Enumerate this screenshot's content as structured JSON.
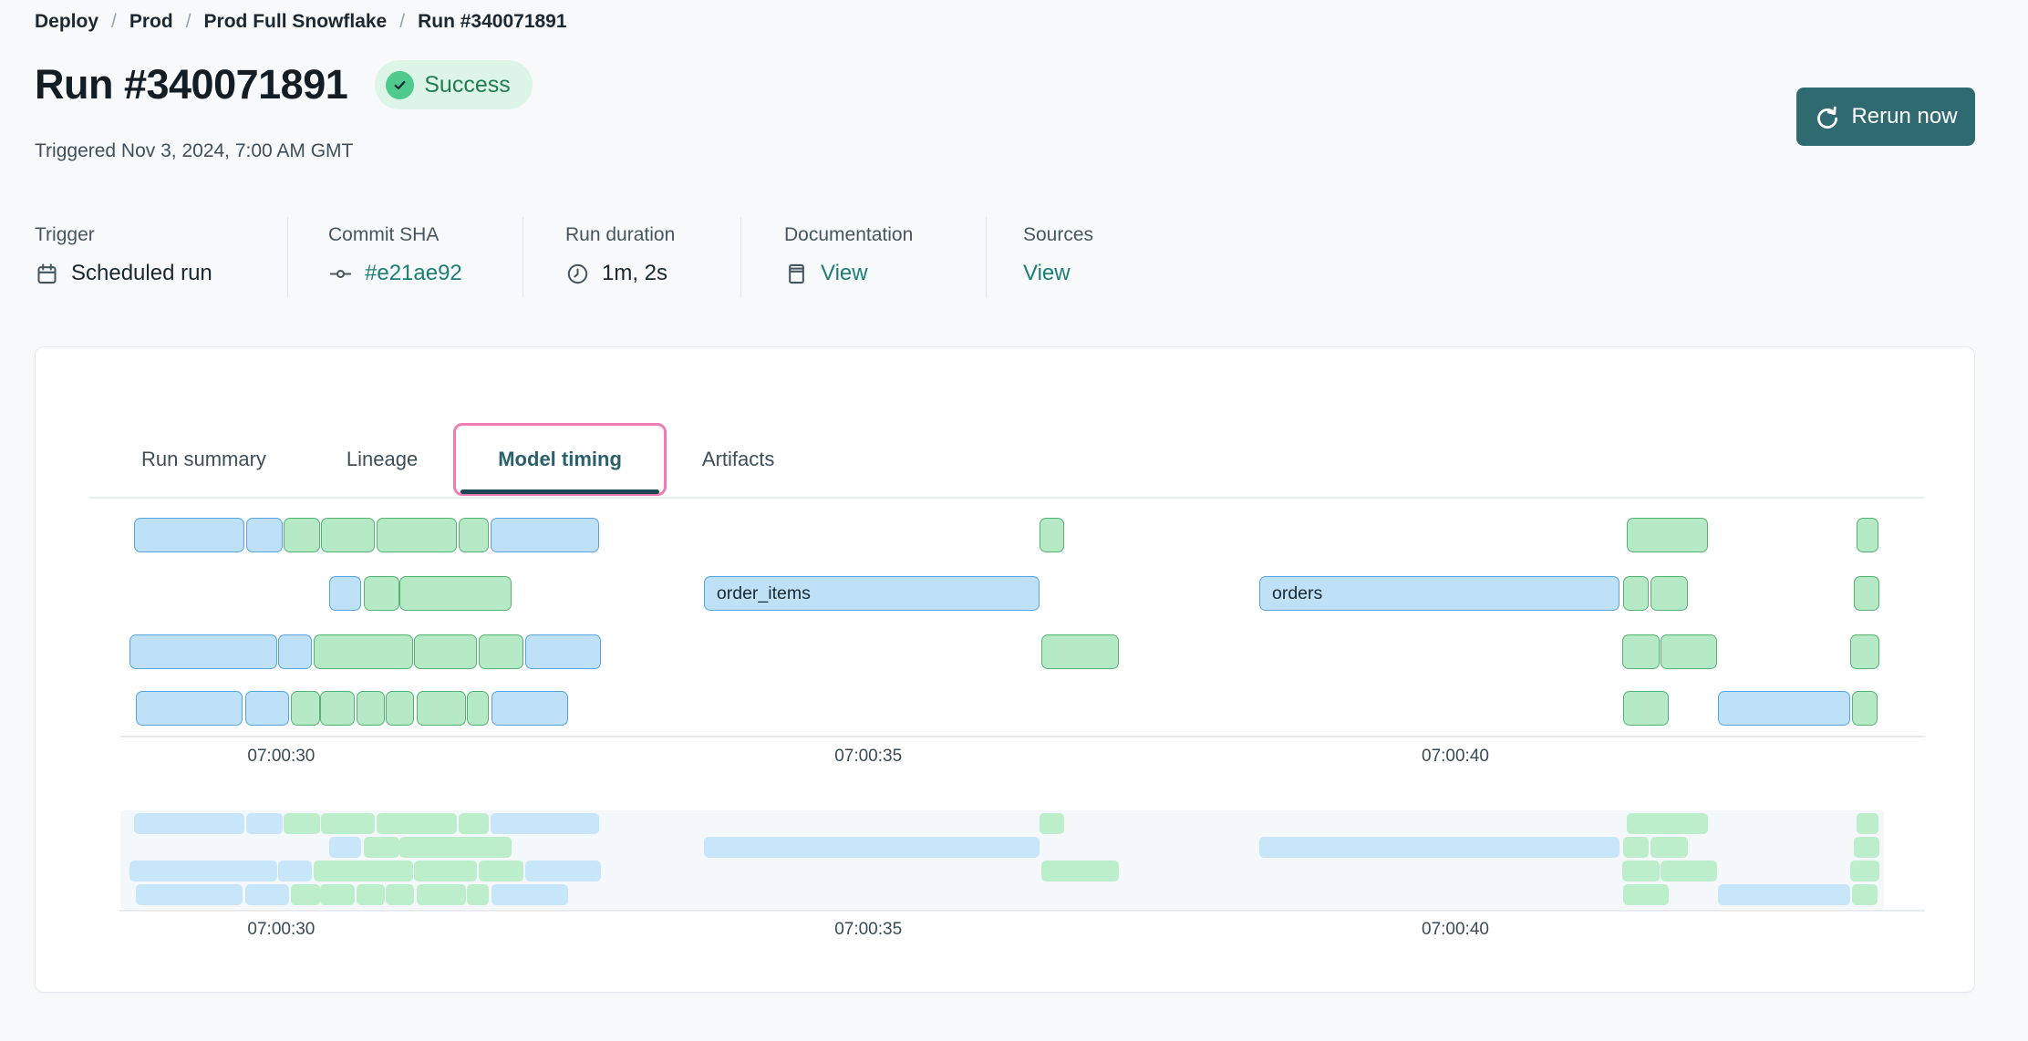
{
  "breadcrumb": {
    "separator": "/",
    "items": [
      "Deploy",
      "Prod",
      "Prod Full Snowflake",
      "Run #340071891"
    ]
  },
  "header": {
    "title": "Run #340071891",
    "status": "Success",
    "triggered": "Triggered Nov 3, 2024, 7:00 AM GMT",
    "rerun_label": "Rerun now"
  },
  "meta": [
    {
      "label": "Trigger",
      "value": "Scheduled run",
      "icon": "calendar-icon",
      "link": false
    },
    {
      "label": "Commit SHA",
      "value": "#e21ae92",
      "icon": "commit-icon",
      "link": true
    },
    {
      "label": "Run duration",
      "value": "1m, 2s",
      "icon": "clock-icon",
      "link": false
    },
    {
      "label": "Documentation",
      "value": "View",
      "icon": "docs-icon",
      "link": true
    },
    {
      "label": "Sources",
      "value": "View",
      "icon": null,
      "link": true
    }
  ],
  "tabs": [
    {
      "label": "Run summary",
      "active": false
    },
    {
      "label": "Lineage",
      "active": false
    },
    {
      "label": "Model timing",
      "active": true
    },
    {
      "label": "Artifacts",
      "active": false
    }
  ],
  "colors": {
    "page_bg": "#f7f9fb",
    "text_dark": "#1b2832",
    "link_teal": "#1b7f77",
    "button_bg": "#2f6a70",
    "badge_bg": "#ddf5e6",
    "badge_circle": "#4fc98c",
    "badge_text": "#237c52",
    "tab_pink": "#ee7eb1",
    "tab_active_text": "#2a5f6d",
    "bar_blue_fill": "#bfe1f8",
    "bar_blue_border": "#56a4e4",
    "bar_green_fill": "#b6eac6",
    "bar_green_border": "#54b274",
    "mini_blue": "#c8e6fa",
    "mini_green": "#bceecb",
    "mini_bg": "#f5f8fa"
  },
  "chart_data": {
    "type": "gantt",
    "title": "Model timing",
    "x_unit": "seconds after 07:00:00 GMT",
    "xlim": [
      28.7,
      43.65
    ],
    "grid": false,
    "has_overview_strip": true,
    "ticks": [
      {
        "t": 30,
        "label": "07:00:30"
      },
      {
        "t": 35,
        "label": "07:00:35"
      },
      {
        "t": 40,
        "label": "07:00:40"
      }
    ],
    "rows": [
      [
        {
          "s": 28.75,
          "e": 29.69,
          "c": "b"
        },
        {
          "s": 29.7,
          "e": 30.01,
          "c": "b"
        },
        {
          "s": 30.02,
          "e": 30.33,
          "c": "g"
        },
        {
          "s": 30.34,
          "e": 30.8,
          "c": "g"
        },
        {
          "s": 30.81,
          "e": 31.5,
          "c": "g"
        },
        {
          "s": 31.51,
          "e": 31.77,
          "c": "g"
        },
        {
          "s": 31.78,
          "e": 32.71,
          "c": "b"
        },
        {
          "s": 36.46,
          "e": 36.67,
          "c": "g"
        },
        {
          "s": 41.46,
          "e": 42.15,
          "c": "g"
        },
        {
          "s": 43.42,
          "e": 43.6,
          "c": "g"
        }
      ],
      [
        {
          "s": 30.41,
          "e": 30.68,
          "c": "b"
        },
        {
          "s": 30.7,
          "e": 31.01,
          "c": "g"
        },
        {
          "s": 31.01,
          "e": 31.96,
          "c": "g"
        },
        {
          "s": 33.6,
          "e": 36.46,
          "c": "b",
          "l": "order_items"
        },
        {
          "s": 38.33,
          "e": 41.4,
          "c": "b",
          "l": "orders"
        },
        {
          "s": 41.43,
          "e": 41.65,
          "c": "g"
        },
        {
          "s": 41.66,
          "e": 41.98,
          "c": "g"
        },
        {
          "s": 43.39,
          "e": 43.61,
          "c": "g"
        }
      ],
      [
        {
          "s": 28.71,
          "e": 29.97,
          "c": "b"
        },
        {
          "s": 29.97,
          "e": 30.26,
          "c": "b"
        },
        {
          "s": 30.28,
          "e": 31.12,
          "c": "g"
        },
        {
          "s": 31.13,
          "e": 31.67,
          "c": "g"
        },
        {
          "s": 31.68,
          "e": 32.06,
          "c": "g"
        },
        {
          "s": 32.08,
          "e": 32.72,
          "c": "b"
        },
        {
          "s": 36.47,
          "e": 37.13,
          "c": "g"
        },
        {
          "s": 41.42,
          "e": 41.74,
          "c": "g"
        },
        {
          "s": 41.75,
          "e": 42.23,
          "c": "g"
        },
        {
          "s": 43.36,
          "e": 43.61,
          "c": "g"
        }
      ],
      [
        {
          "s": 28.76,
          "e": 29.67,
          "c": "b"
        },
        {
          "s": 29.69,
          "e": 30.07,
          "c": "b"
        },
        {
          "s": 30.08,
          "e": 30.33,
          "c": "g"
        },
        {
          "s": 30.33,
          "e": 30.63,
          "c": "g"
        },
        {
          "s": 30.64,
          "e": 30.88,
          "c": "g"
        },
        {
          "s": 30.89,
          "e": 31.13,
          "c": "g"
        },
        {
          "s": 31.15,
          "e": 31.57,
          "c": "g"
        },
        {
          "s": 31.58,
          "e": 31.77,
          "c": "g"
        },
        {
          "s": 31.79,
          "e": 32.44,
          "c": "b"
        },
        {
          "s": 41.43,
          "e": 41.82,
          "c": "g"
        },
        {
          "s": 42.24,
          "e": 43.36,
          "c": "b"
        },
        {
          "s": 43.38,
          "e": 43.6,
          "c": "g"
        }
      ]
    ]
  }
}
